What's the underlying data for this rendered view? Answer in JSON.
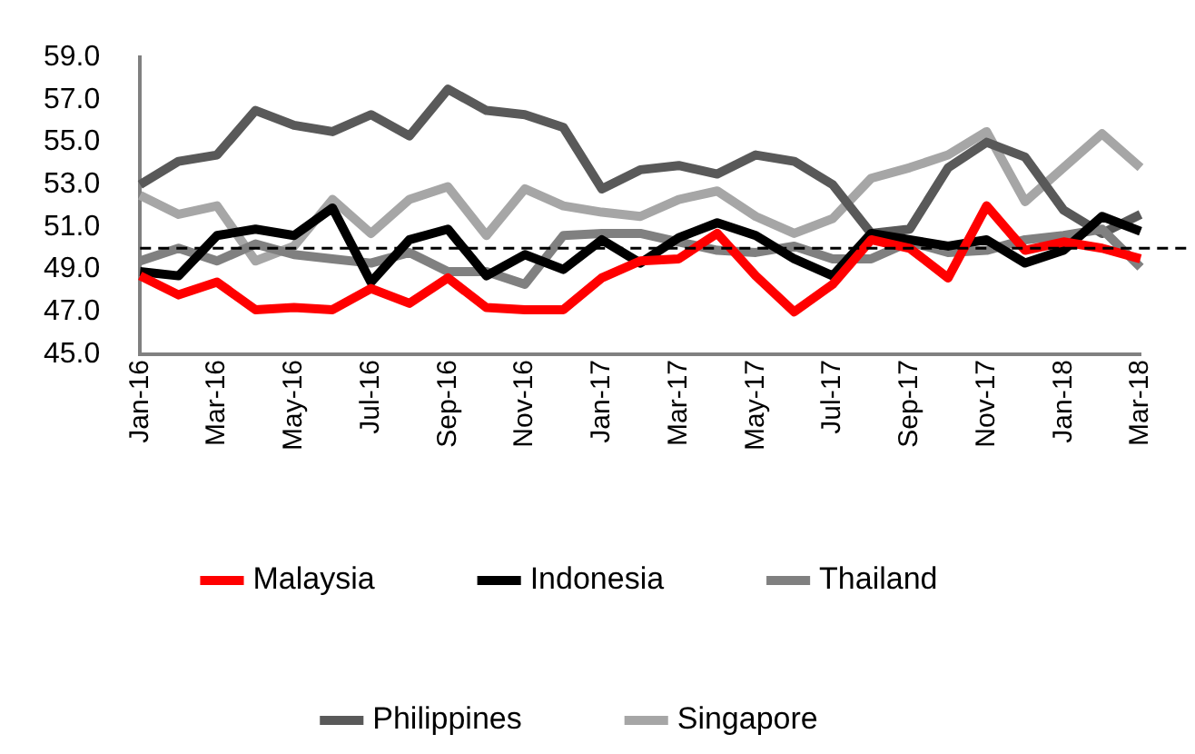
{
  "chart_data": {
    "type": "line",
    "categories": [
      "Jan-16",
      null,
      "Mar-16",
      null,
      "May-16",
      null,
      "Jul-16",
      null,
      "Sep-16",
      null,
      "Nov-16",
      null,
      "Jan-17",
      null,
      "Mar-17",
      null,
      "May-17",
      null,
      "Jul-17",
      null,
      "Sep-17",
      null,
      "Nov-17",
      null,
      "Jan-18",
      null,
      "Mar-18"
    ],
    "series": [
      {
        "name": "Malaysia",
        "color": "#ff0000",
        "values": [
          48.7,
          47.8,
          48.4,
          47.1,
          47.2,
          47.1,
          48.1,
          47.4,
          48.6,
          47.2,
          47.1,
          47.1,
          48.6,
          49.4,
          49.5,
          50.7,
          48.7,
          47.0,
          48.3,
          50.4,
          50.0,
          48.6,
          52.0,
          49.9,
          50.3,
          50.0,
          49.5
        ]
      },
      {
        "name": "Indonesia",
        "color": "#000000",
        "values": [
          48.9,
          48.7,
          50.6,
          50.9,
          50.6,
          51.9,
          48.4,
          50.4,
          50.9,
          48.7,
          49.7,
          49.0,
          50.4,
          49.3,
          50.5,
          51.2,
          50.6,
          49.5,
          48.7,
          50.7,
          50.4,
          50.1,
          50.4,
          49.3,
          49.9,
          51.5,
          50.8
        ]
      },
      {
        "name": "Thailand",
        "color": "#808080",
        "values": [
          49.4,
          50.0,
          49.4,
          50.2,
          49.7,
          49.5,
          49.3,
          49.8,
          48.9,
          48.9,
          48.3,
          50.6,
          50.7,
          50.7,
          50.3,
          49.9,
          49.8,
          50.1,
          49.5,
          49.5,
          50.3,
          49.8,
          49.9,
          50.4,
          50.6,
          50.9,
          49.1
        ]
      },
      {
        "name": "Philippines",
        "color": "#595959",
        "values": [
          53.0,
          54.1,
          54.4,
          56.5,
          55.8,
          55.5,
          56.3,
          55.3,
          57.5,
          56.5,
          56.3,
          55.7,
          52.8,
          53.7,
          53.9,
          53.5,
          54.4,
          54.1,
          53.0,
          50.7,
          50.9,
          53.8,
          55.0,
          54.3,
          51.8,
          50.7,
          51.6
        ]
      },
      {
        "name": "Singapore",
        "color": "#a6a6a6",
        "values": [
          52.5,
          51.6,
          52.0,
          49.4,
          50.1,
          52.3,
          50.7,
          52.3,
          52.9,
          50.6,
          52.8,
          52.0,
          51.7,
          51.5,
          52.3,
          52.7,
          51.5,
          50.7,
          51.4,
          53.3,
          53.8,
          54.4,
          55.5,
          52.2,
          53.8,
          55.4,
          53.8
        ]
      }
    ],
    "ylim": [
      45,
      59
    ],
    "yticks": [
      {
        "value": 45,
        "label": "45.0"
      },
      {
        "value": 47,
        "label": "47.0"
      },
      {
        "value": 49,
        "label": "49.0"
      },
      {
        "value": 51,
        "label": "51.0"
      },
      {
        "value": 53,
        "label": "53.0"
      },
      {
        "value": 55,
        "label": "55.0"
      },
      {
        "value": 57,
        "label": "57.0"
      },
      {
        "value": 59,
        "label": "59.0"
      }
    ],
    "ref_lines": [
      {
        "axis": "y",
        "value": 50,
        "color": "#000000",
        "line_style": "dashed"
      }
    ],
    "grid": false,
    "legend": "bottom",
    "marker": "none",
    "line_style": "solid"
  }
}
